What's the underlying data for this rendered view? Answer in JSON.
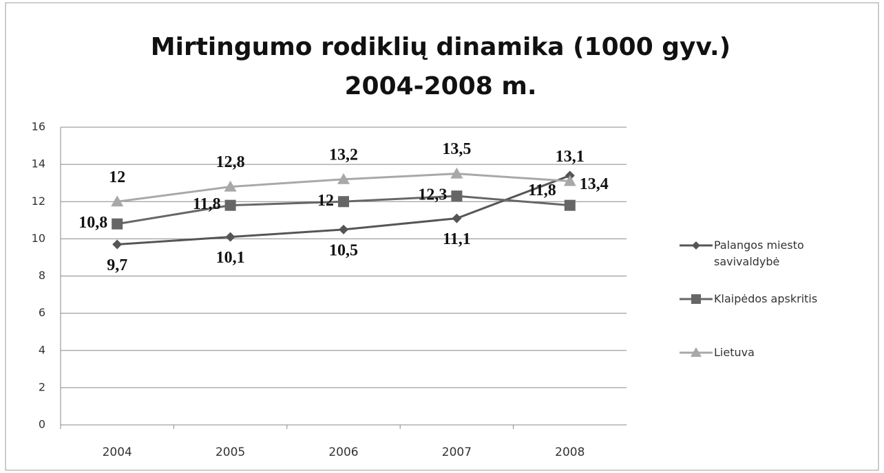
{
  "chart_data": {
    "type": "line",
    "title": "Mirtingumo rodiklių dinamika (1000 gyv.)",
    "subtitle": "2004-2008 m.",
    "categories": [
      "2004",
      "2005",
      "2006",
      "2007",
      "2008"
    ],
    "series": [
      {
        "name": "Palangos miesto savivaldybė",
        "color": "#555555",
        "marker": "diamond",
        "values": [
          9.7,
          10.1,
          10.5,
          11.1,
          13.4
        ],
        "value_labels": [
          "9,7",
          "10,1",
          "10,5",
          "11,1",
          "13,4"
        ]
      },
      {
        "name": "Klaipėdos apskritis",
        "color": "#666666",
        "marker": "square",
        "values": [
          10.8,
          11.8,
          12,
          12.3,
          11.8
        ],
        "value_labels": [
          "10,8",
          "11,8",
          "12",
          "12,3",
          "11,8"
        ]
      },
      {
        "name": "Lietuva",
        "color": "#a8a8a8",
        "marker": "triangle",
        "values": [
          12,
          12.8,
          13.2,
          13.5,
          13.1
        ],
        "value_labels": [
          "12",
          "12,8",
          "13,2",
          "13,5",
          "13,1"
        ]
      }
    ],
    "ylim": [
      0,
      16
    ],
    "yticks": [
      0,
      2,
      4,
      6,
      8,
      10,
      12,
      14,
      16
    ],
    "grid": true,
    "legend": "right"
  }
}
